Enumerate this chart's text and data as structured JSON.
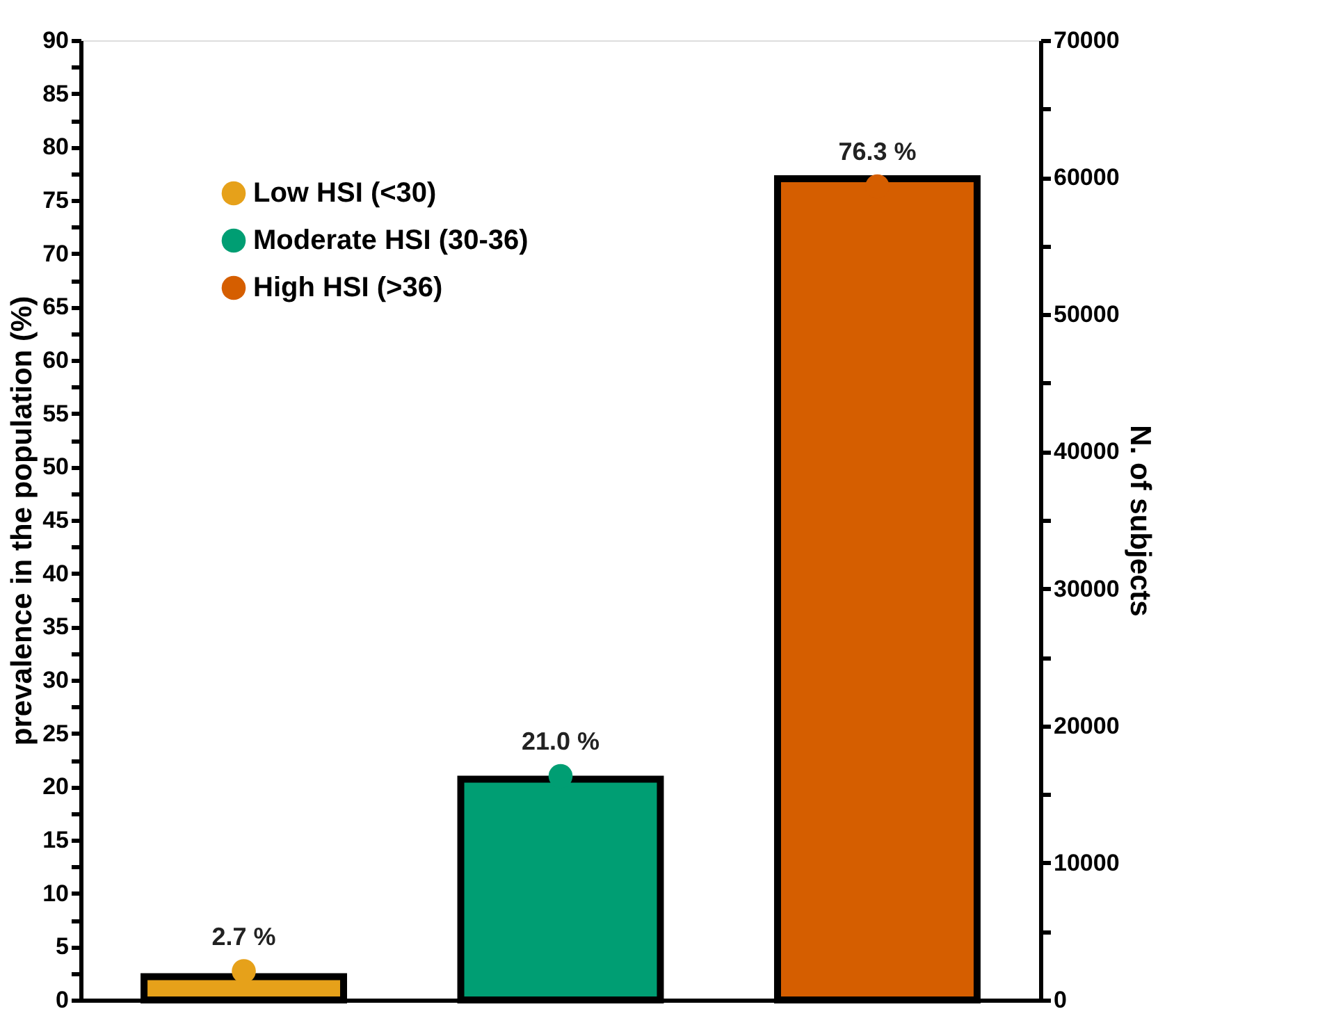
{
  "chart_data": {
    "type": "bar",
    "categories": [
      null,
      null,
      null
    ],
    "ylabel": "prevalence in the population (%)",
    "y2label": "N. of subjects",
    "series": [
      {
        "axis": "y2",
        "colors": [
          "#e6a11a",
          "#009e73",
          "#d55e00"
        ],
        "values": [
          1700,
          16100,
          59900
        ]
      },
      {
        "type": "scatter",
        "name": "Low HSI (<30)",
        "color": "#e6a11a",
        "values": [
          2.7,
          null,
          null
        ],
        "value_labels": [
          "2.7 %",
          null,
          null
        ]
      },
      {
        "type": "scatter",
        "name": "Moderate HSI (30-36)",
        "color": "#009e73",
        "values": [
          null,
          21.0,
          null
        ],
        "value_labels": [
          null,
          "21.0 %",
          null
        ]
      },
      {
        "type": "scatter",
        "name": "High HSI (>36)",
        "color": "#d55e00",
        "values": [
          null,
          null,
          76.3
        ],
        "value_labels": [
          null,
          null,
          "76.3 %"
        ]
      }
    ],
    "ylim": [
      0,
      90
    ],
    "yticks": [
      0,
      {
        "value": 2.5,
        "label": null
      },
      5,
      {
        "value": 7.5,
        "label": null
      },
      10,
      {
        "value": 12.5,
        "label": null
      },
      15,
      {
        "value": 17.5,
        "label": null
      },
      20,
      {
        "value": 22.5,
        "label": null
      },
      25,
      {
        "value": 27.5,
        "label": null
      },
      30,
      {
        "value": 32.5,
        "label": null
      },
      35,
      {
        "value": 37.5,
        "label": null
      },
      40,
      {
        "value": 42.5,
        "label": null
      },
      45,
      {
        "value": 47.5,
        "label": null
      },
      50,
      {
        "value": 52.5,
        "label": null
      },
      55,
      {
        "value": 57.5,
        "label": null
      },
      60,
      {
        "value": 62.5,
        "label": null
      },
      65,
      {
        "value": 67.5,
        "label": null
      },
      70,
      {
        "value": 72.5,
        "label": null
      },
      75,
      {
        "value": 77.5,
        "label": null
      },
      80,
      {
        "value": 82.5,
        "label": null
      },
      85,
      {
        "value": 87.5,
        "label": null
      },
      90
    ],
    "y2lim": [
      0,
      70000
    ],
    "y2ticks": [
      0,
      {
        "value": 5000,
        "label": null
      },
      10000,
      {
        "value": 15000,
        "label": null
      },
      20000,
      {
        "value": 25000,
        "label": null
      },
      30000,
      {
        "value": 35000,
        "label": null
      },
      40000,
      {
        "value": 45000,
        "label": null
      },
      50000,
      {
        "value": 55000,
        "label": null
      },
      60000,
      {
        "value": 65000,
        "label": null
      },
      70000
    ],
    "tick_labels": "y",
    "legend": "top left",
    "marker": "circle",
    "grid": false
  }
}
